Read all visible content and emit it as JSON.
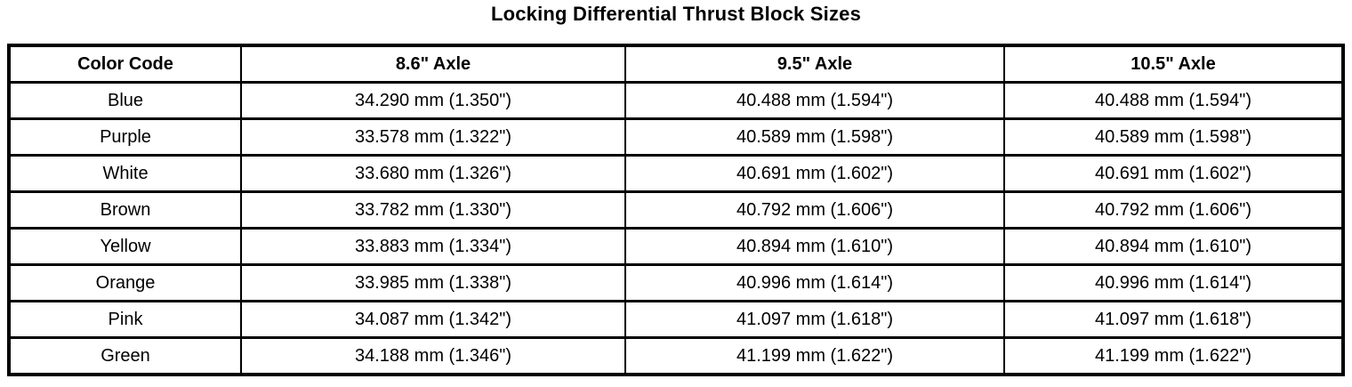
{
  "page": {
    "title": "Locking Differential Thrust Block Sizes"
  },
  "colors": {
    "background": "#ffffff",
    "text": "#000000",
    "border": "#000000"
  },
  "table": {
    "columns": [
      "Color Code",
      "8.6\" Axle",
      "9.5\" Axle",
      "10.5\" Axle"
    ],
    "rows": [
      [
        "Blue",
        "34.290 mm (1.350\")",
        "40.488 mm (1.594\")",
        "40.488 mm (1.594\")"
      ],
      [
        "Purple",
        "33.578 mm (1.322\")",
        "40.589 mm (1.598\")",
        "40.589 mm (1.598\")"
      ],
      [
        "White",
        "33.680 mm (1.326\")",
        "40.691 mm (1.602\")",
        "40.691 mm (1.602\")"
      ],
      [
        "Brown",
        "33.782 mm (1.330\")",
        "40.792 mm (1.606\")",
        "40.792 mm (1.606\")"
      ],
      [
        "Yellow",
        "33.883 mm (1.334\")",
        "40.894 mm (1.610\")",
        "40.894 mm (1.610\")"
      ],
      [
        "Orange",
        "33.985 mm (1.338\")",
        "40.996 mm (1.614\")",
        "40.996 mm (1.614\")"
      ],
      [
        "Pink",
        "34.087 mm (1.342\")",
        "41.097 mm (1.618\")",
        "41.097 mm (1.618\")"
      ],
      [
        "Green",
        "34.188 mm (1.346\")",
        "41.199 mm (1.622\")",
        "41.199 mm (1.622\")"
      ]
    ]
  }
}
